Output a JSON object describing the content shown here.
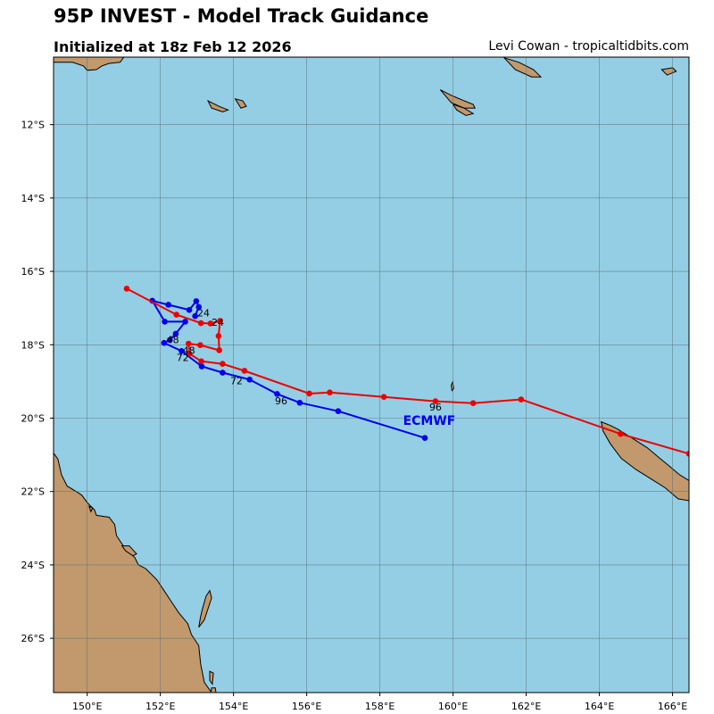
{
  "title": "95P INVEST - Model Track Guidance",
  "subtitle": "Initialized at 18z Feb 12 2026",
  "credit": "Levi Cowan - tropicaltidbits.com",
  "colors": {
    "ocean": "#94cee4",
    "land": "#c1996c",
    "gridline": "#5b6f78",
    "ecmwf": "#0000ee",
    "other_model": "#ee0000"
  },
  "map_extent": {
    "lon_min": 149.08,
    "lon_max": 166.45,
    "lat_min": -27.48,
    "lat_max": -10.16
  },
  "x_ticks": [
    {
      "lon": 150,
      "label": "150°E"
    },
    {
      "lon": 152,
      "label": "152°E"
    },
    {
      "lon": 154,
      "label": "154°E"
    },
    {
      "lon": 156,
      "label": "156°E"
    },
    {
      "lon": 158,
      "label": "158°E"
    },
    {
      "lon": 160,
      "label": "160°E"
    },
    {
      "lon": 162,
      "label": "162°E"
    },
    {
      "lon": 164,
      "label": "164°E"
    },
    {
      "lon": 166,
      "label": "166°E"
    }
  ],
  "y_ticks": [
    {
      "lat": -12,
      "label": "12°S"
    },
    {
      "lat": -14,
      "label": "14°S"
    },
    {
      "lat": -16,
      "label": "16°S"
    },
    {
      "lat": -18,
      "label": "18°S"
    },
    {
      "lat": -20,
      "label": "20°S"
    },
    {
      "lat": -22,
      "label": "22°S"
    },
    {
      "lat": -24,
      "label": "24°S"
    },
    {
      "lat": -26,
      "label": "26°S"
    }
  ],
  "tracks": [
    {
      "name": "ECMWF",
      "color": "#0000ee",
      "points": [
        [
          152.95,
          -17.22
        ],
        [
          153.05,
          -16.97
        ],
        [
          152.98,
          -16.81
        ],
        [
          152.79,
          -17.05
        ],
        [
          152.22,
          -16.91
        ],
        [
          151.78,
          -16.8
        ],
        [
          152.12,
          -17.37
        ],
        [
          152.68,
          -17.37
        ],
        [
          152.42,
          -17.7
        ],
        [
          152.26,
          -17.87
        ],
        [
          152.1,
          -17.95
        ],
        [
          152.58,
          -18.17
        ],
        [
          153.13,
          -18.59
        ],
        [
          153.7,
          -18.76
        ],
        [
          154.44,
          -18.95
        ],
        [
          155.19,
          -19.34
        ],
        [
          155.81,
          -19.58
        ],
        [
          156.86,
          -19.81
        ],
        [
          159.23,
          -20.54
        ]
      ],
      "hour_labels": [
        {
          "text": "24",
          "lon": 153.18,
          "lat": -17.23
        },
        {
          "text": "48",
          "lon": 152.34,
          "lat": -17.96
        },
        {
          "text": "72",
          "lon": 152.61,
          "lat": -18.44
        },
        {
          "text": "96",
          "lon": 155.3,
          "lat": -19.62
        }
      ],
      "model_label": {
        "text": "ECMWF",
        "lon": 159.35,
        "lat": -20.18
      }
    },
    {
      "name": "Other",
      "color": "#ee0000",
      "points": [
        [
          151.08,
          -16.47
        ],
        [
          152.44,
          -17.18
        ],
        [
          153.11,
          -17.41
        ],
        [
          153.37,
          -17.42
        ],
        [
          153.63,
          -17.35
        ],
        [
          153.59,
          -17.76
        ],
        [
          153.61,
          -18.15
        ],
        [
          153.09,
          -18.01
        ],
        [
          152.77,
          -17.97
        ],
        [
          152.79,
          -18.24
        ],
        [
          153.12,
          -18.45
        ],
        [
          153.7,
          -18.52
        ],
        [
          154.3,
          -18.71
        ],
        [
          156.07,
          -19.33
        ],
        [
          156.63,
          -19.3
        ],
        [
          158.11,
          -19.42
        ],
        [
          159.52,
          -19.54
        ],
        [
          160.55,
          -19.59
        ],
        [
          161.86,
          -19.49
        ],
        [
          164.58,
          -20.43
        ],
        [
          166.45,
          -20.97
        ]
      ],
      "hour_labels": [
        {
          "text": "24",
          "lon": 153.57,
          "lat": -17.48
        },
        {
          "text": "48",
          "lon": 152.78,
          "lat": -18.25
        },
        {
          "text": "72",
          "lon": 154.08,
          "lat": -19.08
        },
        {
          "text": "96",
          "lon": 159.52,
          "lat": -19.79
        }
      ],
      "model_label": null
    }
  ],
  "land": [
    {
      "name": "australia",
      "coords": [
        [
          149.08,
          -20.95
        ],
        [
          149.2,
          -21.12
        ],
        [
          149.3,
          -21.55
        ],
        [
          149.45,
          -21.85
        ],
        [
          149.7,
          -22.0
        ],
        [
          149.85,
          -22.1
        ],
        [
          150.0,
          -22.3
        ],
        [
          150.1,
          -22.4
        ],
        [
          150.2,
          -22.5
        ],
        [
          150.25,
          -22.65
        ],
        [
          150.6,
          -22.7
        ],
        [
          150.75,
          -22.9
        ],
        [
          150.8,
          -23.2
        ],
        [
          151.0,
          -23.5
        ],
        [
          151.3,
          -23.8
        ],
        [
          151.4,
          -24.0
        ],
        [
          151.6,
          -24.1
        ],
        [
          151.9,
          -24.4
        ],
        [
          152.1,
          -24.7
        ],
        [
          152.3,
          -25.0
        ],
        [
          152.5,
          -25.3
        ],
        [
          152.75,
          -25.6
        ],
        [
          152.85,
          -25.9
        ],
        [
          153.05,
          -26.2
        ],
        [
          153.1,
          -26.7
        ],
        [
          153.2,
          -27.2
        ],
        [
          153.4,
          -27.48
        ],
        [
          149.08,
          -27.48
        ]
      ]
    },
    {
      "name": "fraser-island",
      "coords": [
        [
          153.15,
          -25.2
        ],
        [
          153.25,
          -24.85
        ],
        [
          153.35,
          -24.7
        ],
        [
          153.4,
          -24.9
        ],
        [
          153.2,
          -25.5
        ],
        [
          153.05,
          -25.7
        ],
        [
          153.1,
          -25.4
        ]
      ]
    },
    {
      "name": "moreton-island",
      "coords": [
        [
          153.35,
          -26.9
        ],
        [
          153.45,
          -26.95
        ],
        [
          153.42,
          -27.25
        ],
        [
          153.35,
          -27.15
        ]
      ]
    },
    {
      "name": "stradbroke-island",
      "coords": [
        [
          153.4,
          -27.35
        ],
        [
          153.5,
          -27.35
        ],
        [
          153.52,
          -27.48
        ],
        [
          153.38,
          -27.48
        ]
      ]
    },
    {
      "name": "curtis-island",
      "coords": [
        [
          150.95,
          -23.48
        ],
        [
          151.15,
          -23.48
        ],
        [
          151.35,
          -23.7
        ],
        [
          151.25,
          -23.75
        ],
        [
          151.05,
          -23.62
        ]
      ]
    },
    {
      "name": "new-caledonia",
      "coords": [
        [
          164.05,
          -20.1
        ],
        [
          164.3,
          -20.2
        ],
        [
          164.5,
          -20.3
        ],
        [
          164.9,
          -20.55
        ],
        [
          165.3,
          -20.8
        ],
        [
          165.6,
          -21.05
        ],
        [
          165.9,
          -21.3
        ],
        [
          166.2,
          -21.55
        ],
        [
          166.45,
          -21.7
        ],
        [
          166.45,
          -22.25
        ],
        [
          166.15,
          -22.2
        ],
        [
          165.8,
          -21.9
        ],
        [
          165.4,
          -21.65
        ],
        [
          165.0,
          -21.4
        ],
        [
          164.6,
          -21.1
        ],
        [
          164.3,
          -20.7
        ],
        [
          164.1,
          -20.35
        ]
      ]
    },
    {
      "name": "new-guinea-tip",
      "coords": [
        [
          149.08,
          -10.16
        ],
        [
          151.0,
          -10.16
        ],
        [
          150.9,
          -10.3
        ],
        [
          150.6,
          -10.33
        ],
        [
          150.4,
          -10.4
        ],
        [
          150.25,
          -10.5
        ],
        [
          150.0,
          -10.52
        ],
        [
          149.9,
          -10.4
        ],
        [
          149.6,
          -10.3
        ],
        [
          149.08,
          -10.3
        ]
      ]
    },
    {
      "name": "rossel-island",
      "coords": [
        [
          154.05,
          -11.3
        ],
        [
          154.25,
          -11.35
        ],
        [
          154.35,
          -11.5
        ],
        [
          154.2,
          -11.55
        ]
      ]
    },
    {
      "name": "sudest-island",
      "coords": [
        [
          153.3,
          -11.35
        ],
        [
          153.6,
          -11.5
        ],
        [
          153.85,
          -11.6
        ],
        [
          153.7,
          -11.65
        ],
        [
          153.4,
          -11.55
        ]
      ]
    },
    {
      "name": "guadalcanal",
      "coords": [
        [
          159.65,
          -11.05
        ],
        [
          159.95,
          -11.2
        ],
        [
          160.3,
          -11.35
        ],
        [
          160.55,
          -11.45
        ],
        [
          160.6,
          -11.55
        ],
        [
          160.3,
          -11.55
        ],
        [
          159.95,
          -11.4
        ]
      ]
    },
    {
      "name": "makira",
      "coords": [
        [
          161.4,
          -10.18
        ],
        [
          161.8,
          -10.3
        ],
        [
          162.2,
          -10.5
        ],
        [
          162.4,
          -10.7
        ],
        [
          162.15,
          -10.7
        ],
        [
          161.7,
          -10.5
        ]
      ]
    },
    {
      "name": "rennell-island",
      "coords": [
        [
          160.0,
          -11.45
        ],
        [
          160.3,
          -11.55
        ],
        [
          160.55,
          -11.7
        ],
        [
          160.35,
          -11.75
        ],
        [
          160.1,
          -11.6
        ]
      ]
    },
    {
      "name": "santa-cruz-island",
      "coords": [
        [
          165.7,
          -10.5
        ],
        [
          166.0,
          -10.45
        ],
        [
          166.1,
          -10.55
        ],
        [
          165.85,
          -10.65
        ]
      ]
    },
    {
      "name": "chesterfield-islet",
      "coords": [
        [
          159.95,
          -19.1
        ],
        [
          159.99,
          -19.02
        ],
        [
          160.02,
          -19.2
        ],
        [
          159.97,
          -19.25
        ]
      ]
    },
    {
      "name": "whitsunday-island",
      "coords": [
        [
          150.05,
          -22.4
        ],
        [
          150.15,
          -22.45
        ],
        [
          150.1,
          -22.55
        ]
      ]
    }
  ]
}
